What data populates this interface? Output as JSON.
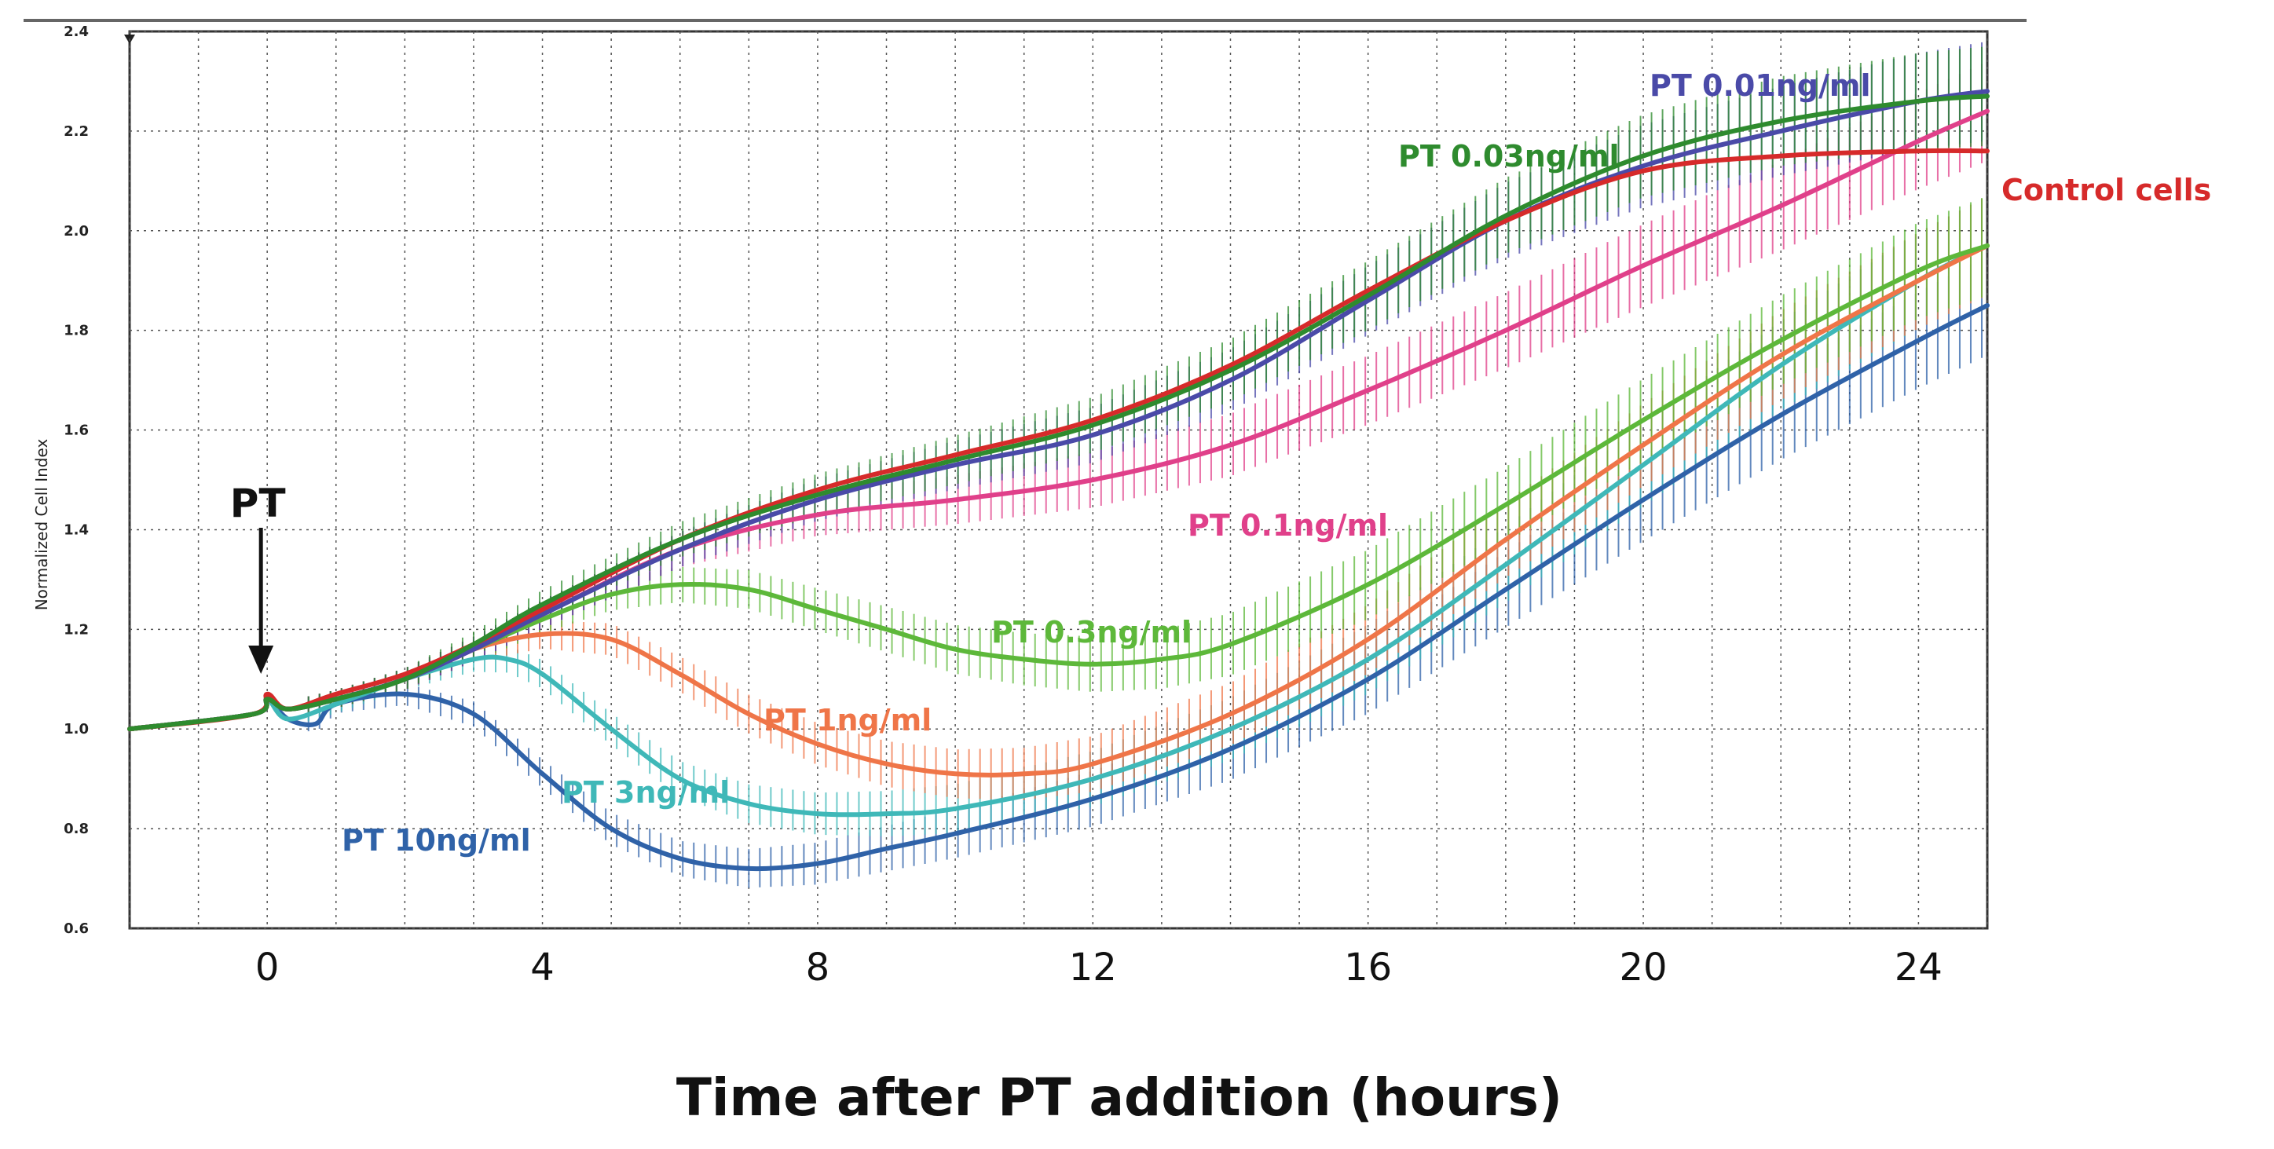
{
  "chart_data": {
    "type": "line",
    "title": "",
    "xlabel": "Time after PT addition (hours)",
    "ylabel": "Normalized Cell Index",
    "xlim": [
      -2,
      25
    ],
    "ylim": [
      0.6,
      2.4
    ],
    "xticks": [
      0,
      4,
      8,
      12,
      16,
      20,
      24
    ],
    "yticks": [
      0.6,
      0.8,
      1.0,
      1.2,
      1.4,
      1.6,
      1.8,
      2.0,
      2.2,
      2.4
    ],
    "x_grid_step": 1,
    "grid": true,
    "annotation": {
      "text": "PT",
      "x": 0
    },
    "series": [
      {
        "name": "Control cells",
        "color": "#d62a2a",
        "errorbars": false,
        "x": [
          -2,
          -0.2,
          0,
          0.3,
          1,
          2,
          3,
          4,
          6,
          8,
          10,
          12,
          14,
          16,
          18,
          20,
          22,
          24,
          25
        ],
        "values": [
          1.0,
          1.03,
          1.07,
          1.04,
          1.07,
          1.11,
          1.17,
          1.24,
          1.38,
          1.48,
          1.55,
          1.62,
          1.73,
          1.88,
          2.02,
          2.12,
          2.15,
          2.16,
          2.16
        ]
      },
      {
        "name": "PT 0.01ng/ml",
        "color": "#4a4aa8",
        "errorbars": true,
        "x": [
          -2,
          -0.2,
          0,
          0.3,
          1,
          2,
          3,
          4,
          6,
          8,
          10,
          12,
          14,
          16,
          18,
          20,
          22,
          24,
          25
        ],
        "values": [
          1.0,
          1.03,
          1.06,
          1.04,
          1.06,
          1.1,
          1.16,
          1.23,
          1.36,
          1.46,
          1.53,
          1.59,
          1.7,
          1.86,
          2.02,
          2.13,
          2.2,
          2.26,
          2.28
        ]
      },
      {
        "name": "PT 0.03ng/ml",
        "color": "#2e8b2e",
        "errorbars": true,
        "x": [
          -2,
          -0.2,
          0,
          0.3,
          1,
          2,
          3,
          4,
          6,
          8,
          10,
          12,
          14,
          16,
          18,
          20,
          22,
          24,
          25
        ],
        "values": [
          1.0,
          1.03,
          1.06,
          1.04,
          1.06,
          1.1,
          1.17,
          1.25,
          1.38,
          1.47,
          1.54,
          1.61,
          1.72,
          1.87,
          2.03,
          2.15,
          2.22,
          2.26,
          2.27
        ]
      },
      {
        "name": "PT 0.1ng/ml",
        "color": "#e0408a",
        "errorbars": true,
        "x": [
          -2,
          -0.2,
          0,
          0.3,
          1,
          2,
          3,
          4,
          6,
          8,
          10,
          12,
          14,
          16,
          18,
          20,
          22,
          24,
          25
        ],
        "values": [
          1.0,
          1.03,
          1.06,
          1.04,
          1.06,
          1.1,
          1.16,
          1.23,
          1.36,
          1.43,
          1.46,
          1.5,
          1.57,
          1.68,
          1.8,
          1.93,
          2.05,
          2.18,
          2.24
        ]
      },
      {
        "name": "PT 0.3ng/ml",
        "color": "#5db83a",
        "errorbars": true,
        "x": [
          -2,
          -0.2,
          0,
          0.3,
          1,
          2,
          3,
          4,
          5,
          6,
          7,
          8,
          9,
          10,
          11,
          12,
          13,
          14,
          16,
          18,
          20,
          22,
          24,
          25
        ],
        "values": [
          1.0,
          1.03,
          1.06,
          1.04,
          1.06,
          1.1,
          1.16,
          1.22,
          1.27,
          1.29,
          1.28,
          1.24,
          1.2,
          1.16,
          1.14,
          1.13,
          1.14,
          1.17,
          1.29,
          1.45,
          1.62,
          1.78,
          1.92,
          1.97
        ]
      },
      {
        "name": "PT 1ng/ml",
        "color": "#ef7548",
        "errorbars": true,
        "x": [
          -2,
          -0.2,
          0,
          0.3,
          1,
          2,
          3,
          4,
          5,
          6,
          7,
          8,
          9,
          10,
          11,
          12,
          14,
          16,
          18,
          20,
          22,
          24,
          25
        ],
        "values": [
          1.0,
          1.03,
          1.06,
          1.04,
          1.06,
          1.1,
          1.16,
          1.19,
          1.18,
          1.11,
          1.03,
          0.97,
          0.93,
          0.91,
          0.91,
          0.93,
          1.03,
          1.18,
          1.38,
          1.57,
          1.75,
          1.9,
          1.97
        ]
      },
      {
        "name": "PT 3ng/ml",
        "color": "#3fb8b8",
        "errorbars": true,
        "x": [
          -2,
          -0.2,
          0,
          0.3,
          1,
          2,
          3,
          3.5,
          4,
          5,
          6,
          7,
          8,
          9,
          10,
          12,
          14,
          16,
          18,
          20,
          22,
          24,
          25
        ],
        "values": [
          1.0,
          1.03,
          1.06,
          1.02,
          1.05,
          1.1,
          1.14,
          1.14,
          1.11,
          1.0,
          0.9,
          0.85,
          0.83,
          0.83,
          0.84,
          0.9,
          1.0,
          1.14,
          1.33,
          1.53,
          1.73,
          1.9,
          1.97
        ]
      },
      {
        "name": "PT 10ng/ml",
        "color": "#2f62a8",
        "errorbars": true,
        "x": [
          -2,
          -0.2,
          0,
          0.3,
          0.7,
          1,
          2,
          3,
          4,
          5,
          6,
          7,
          8,
          9,
          10,
          12,
          14,
          16,
          18,
          20,
          22,
          24,
          25
        ],
        "values": [
          1.0,
          1.03,
          1.06,
          1.02,
          1.01,
          1.05,
          1.07,
          1.03,
          0.91,
          0.8,
          0.74,
          0.72,
          0.73,
          0.76,
          0.79,
          0.86,
          0.96,
          1.1,
          1.28,
          1.46,
          1.63,
          1.78,
          1.85
        ]
      }
    ]
  }
}
